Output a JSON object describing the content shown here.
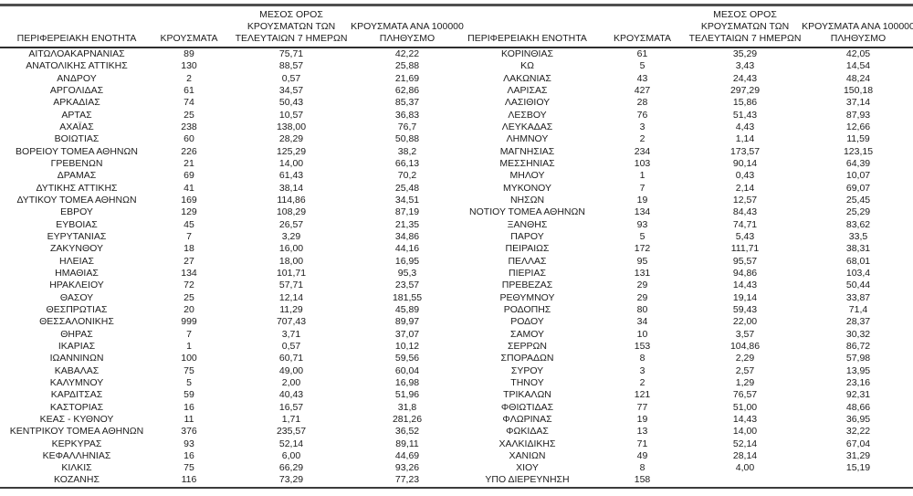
{
  "page": {
    "background": "#ffffff",
    "text_color": "#1c1c1c",
    "rule_color_top": "#4f4f4f",
    "rule_color_header": "#2e2e2e",
    "rule_color_bottom": "#3c3c3c"
  },
  "columns": [
    {
      "lines": [
        "ΠΕΡΙΦΕΡΕΙΑΚΗ ΕΝΟΤΗΤΑ"
      ]
    },
    {
      "lines": [
        "ΚΡΟΥΣΜΑΤΑ"
      ]
    },
    {
      "lines": [
        "ΜΕΣΟΣ ΟΡΟΣ",
        "ΚΡΟΥΣΜΑΤΩΝ ΤΩΝ",
        "ΤΕΛΕΥΤΑΙΩΝ 7 ΗΜΕΡΩΝ"
      ]
    },
    {
      "lines": [
        "ΚΡΟΥΣΜΑΤΑ ΑΝΑ 100000",
        "ΠΛΗΘΥΣΜΟ"
      ]
    }
  ],
  "tables": [
    {
      "rows": [
        [
          "ΑΙΤΩΛΟΑΚΑΡΝΑΝΙΑΣ",
          "89",
          "75,71",
          "42,22"
        ],
        [
          "ΑΝΑΤΟΛΙΚΗΣ ΑΤΤΙΚΗΣ",
          "130",
          "88,57",
          "25,88"
        ],
        [
          "ΑΝΔΡΟΥ",
          "2",
          "0,57",
          "21,69"
        ],
        [
          "ΑΡΓΟΛΙΔΑΣ",
          "61",
          "34,57",
          "62,86"
        ],
        [
          "ΑΡΚΑΔΙΑΣ",
          "74",
          "50,43",
          "85,37"
        ],
        [
          "ΑΡΤΑΣ",
          "25",
          "10,57",
          "36,83"
        ],
        [
          "ΑΧΑΪΑΣ",
          "238",
          "138,00",
          "76,7"
        ],
        [
          "ΒΟΙΩΤΙΑΣ",
          "60",
          "28,29",
          "50,88"
        ],
        [
          "ΒΟΡΕΙΟΥ ΤΟΜΕΑ ΑΘΗΝΩΝ",
          "226",
          "125,29",
          "38,2"
        ],
        [
          "ΓΡΕΒΕΝΩΝ",
          "21",
          "14,00",
          "66,13"
        ],
        [
          "ΔΡΑΜΑΣ",
          "69",
          "61,43",
          "70,2"
        ],
        [
          "ΔΥΤΙΚΗΣ ΑΤΤΙΚΗΣ",
          "41",
          "38,14",
          "25,48"
        ],
        [
          "ΔΥΤΙΚΟΥ ΤΟΜΕΑ ΑΘΗΝΩΝ",
          "169",
          "114,86",
          "34,51"
        ],
        [
          "ΕΒΡΟΥ",
          "129",
          "108,29",
          "87,19"
        ],
        [
          "ΕΥΒΟΙΑΣ",
          "45",
          "26,57",
          "21,35"
        ],
        [
          "ΕΥΡΥΤΑΝΙΑΣ",
          "7",
          "3,29",
          "34,86"
        ],
        [
          "ΖΑΚΥΝΘΟΥ",
          "18",
          "16,00",
          "44,16"
        ],
        [
          "ΗΛΕΙΑΣ",
          "27",
          "18,00",
          "16,95"
        ],
        [
          "ΗΜΑΘΙΑΣ",
          "134",
          "101,71",
          "95,3"
        ],
        [
          "ΗΡΑΚΛΕΙΟΥ",
          "72",
          "57,71",
          "23,57"
        ],
        [
          "ΘΑΣΟΥ",
          "25",
          "12,14",
          "181,55"
        ],
        [
          "ΘΕΣΠΡΩΤΙΑΣ",
          "20",
          "11,29",
          "45,89"
        ],
        [
          "ΘΕΣΣΑΛΟΝΙΚΗΣ",
          "999",
          "707,43",
          "89,97"
        ],
        [
          "ΘΗΡΑΣ",
          "7",
          "3,71",
          "37,07"
        ],
        [
          "ΙΚΑΡΙΑΣ",
          "1",
          "0,57",
          "10,12"
        ],
        [
          "ΙΩΑΝΝΙΝΩΝ",
          "100",
          "60,71",
          "59,56"
        ],
        [
          "ΚΑΒΑΛΑΣ",
          "75",
          "49,00",
          "60,04"
        ],
        [
          "ΚΑΛΥΜΝΟΥ",
          "5",
          "2,00",
          "16,98"
        ],
        [
          "ΚΑΡΔΙΤΣΑΣ",
          "59",
          "40,43",
          "51,96"
        ],
        [
          "ΚΑΣΤΟΡΙΑΣ",
          "16",
          "16,57",
          "31,8"
        ],
        [
          "ΚΕΑΣ - ΚΥΘΝΟΥ",
          "11",
          "1,71",
          "281,26"
        ],
        [
          "ΚΕΝΤΡΙΚΟΥ ΤΟΜΕΑ ΑΘΗΝΩΝ",
          "376",
          "235,57",
          "36,52"
        ],
        [
          "ΚΕΡΚΥΡΑΣ",
          "93",
          "52,14",
          "89,11"
        ],
        [
          "ΚΕΦΑΛΛΗΝΙΑΣ",
          "16",
          "6,00",
          "44,69"
        ],
        [
          "ΚΙΛΚΙΣ",
          "75",
          "66,29",
          "93,26"
        ],
        [
          "ΚΟΖΑΝΗΣ",
          "116",
          "73,29",
          "77,23"
        ]
      ]
    },
    {
      "rows": [
        [
          "ΚΟΡΙΝΘΙΑΣ",
          "61",
          "35,29",
          "42,05"
        ],
        [
          "ΚΩ",
          "5",
          "3,43",
          "14,54"
        ],
        [
          "ΛΑΚΩΝΙΑΣ",
          "43",
          "24,43",
          "48,24"
        ],
        [
          "ΛΑΡΙΣΑΣ",
          "427",
          "297,29",
          "150,18"
        ],
        [
          "ΛΑΣΙΘΙΟΥ",
          "28",
          "15,86",
          "37,14"
        ],
        [
          "ΛΕΣΒΟΥ",
          "76",
          "51,43",
          "87,93"
        ],
        [
          "ΛΕΥΚΑΔΑΣ",
          "3",
          "4,43",
          "12,66"
        ],
        [
          "ΛΗΜΝΟΥ",
          "2",
          "1,14",
          "11,59"
        ],
        [
          "ΜΑΓΝΗΣΙΑΣ",
          "234",
          "173,57",
          "123,15"
        ],
        [
          "ΜΕΣΣΗΝΙΑΣ",
          "103",
          "90,14",
          "64,39"
        ],
        [
          "ΜΗΛΟΥ",
          "1",
          "0,43",
          "10,07"
        ],
        [
          "ΜΥΚΟΝΟΥ",
          "7",
          "2,14",
          "69,07"
        ],
        [
          "ΝΗΣΩΝ",
          "19",
          "12,57",
          "25,45"
        ],
        [
          "ΝΟΤΙΟΥ ΤΟΜΕΑ ΑΘΗΝΩΝ",
          "134",
          "84,43",
          "25,29"
        ],
        [
          "ΞΑΝΘΗΣ",
          "93",
          "74,71",
          "83,62"
        ],
        [
          "ΠΑΡΟΥ",
          "5",
          "5,43",
          "33,5"
        ],
        [
          "ΠΕΙΡΑΙΩΣ",
          "172",
          "111,71",
          "38,31"
        ],
        [
          "ΠΕΛΛΑΣ",
          "95",
          "95,57",
          "68,01"
        ],
        [
          "ΠΙΕΡΙΑΣ",
          "131",
          "94,86",
          "103,4"
        ],
        [
          "ΠΡΕΒΕΖΑΣ",
          "29",
          "14,43",
          "50,44"
        ],
        [
          "ΡΕΘΥΜΝΟΥ",
          "29",
          "19,14",
          "33,87"
        ],
        [
          "ΡΟΔΟΠΗΣ",
          "80",
          "59,43",
          "71,4"
        ],
        [
          "ΡΟΔΟΥ",
          "34",
          "22,00",
          "28,37"
        ],
        [
          "ΣΑΜΟΥ",
          "10",
          "3,57",
          "30,32"
        ],
        [
          "ΣΕΡΡΩΝ",
          "153",
          "104,86",
          "86,72"
        ],
        [
          "ΣΠΟΡΑΔΩΝ",
          "8",
          "2,29",
          "57,98"
        ],
        [
          "ΣΥΡΟΥ",
          "3",
          "2,57",
          "13,95"
        ],
        [
          "ΤΗΝΟΥ",
          "2",
          "1,29",
          "23,16"
        ],
        [
          "ΤΡΙΚΑΛΩΝ",
          "121",
          "76,57",
          "92,31"
        ],
        [
          "ΦΘΙΩΤΙΔΑΣ",
          "77",
          "51,00",
          "48,66"
        ],
        [
          "ΦΛΩΡΙΝΑΣ",
          "19",
          "14,43",
          "36,95"
        ],
        [
          "ΦΩΚΙΔΑΣ",
          "13",
          "14,00",
          "32,22"
        ],
        [
          "ΧΑΛΚΙΔΙΚΗΣ",
          "71",
          "52,14",
          "67,04"
        ],
        [
          "ΧΑΝΙΩΝ",
          "49",
          "28,14",
          "31,29"
        ],
        [
          "ΧΙΟΥ",
          "8",
          "4,00",
          "15,19"
        ],
        [
          "ΥΠΟ ΔΙΕΡΕΥΝΗΣΗ",
          "158",
          "",
          ""
        ]
      ]
    }
  ]
}
